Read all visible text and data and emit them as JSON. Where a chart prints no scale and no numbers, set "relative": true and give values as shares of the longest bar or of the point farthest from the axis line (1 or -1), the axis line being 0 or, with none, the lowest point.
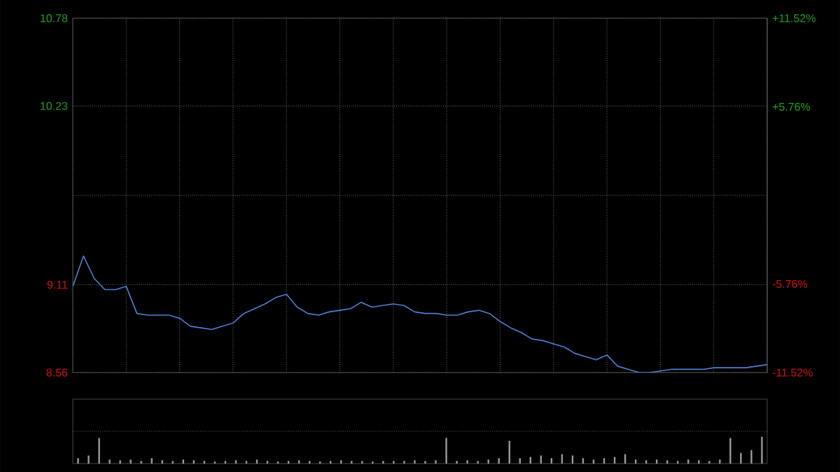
{
  "chart_data": [
    {
      "type": "line",
      "categories": [
        null,
        null,
        null,
        null,
        null,
        null,
        null,
        null,
        null,
        null,
        null,
        null,
        null,
        null,
        null,
        null,
        null,
        null,
        null,
        null,
        null,
        null,
        null,
        null,
        null,
        null,
        null,
        null,
        null,
        null,
        null,
        null,
        null,
        null,
        null,
        null,
        null,
        null,
        null,
        null,
        null,
        null,
        null,
        null,
        null,
        null,
        null,
        null,
        null,
        null,
        null,
        null,
        null,
        null,
        null,
        null,
        null,
        null,
        null,
        null,
        null,
        null,
        null,
        null,
        null,
        null
      ],
      "series": [
        {
          "color": "#4f7fd0",
          "values": [
            9.1,
            9.29,
            9.15,
            9.08,
            9.08,
            9.1,
            8.93,
            8.92,
            8.92,
            8.92,
            8.9,
            8.85,
            8.84,
            8.83,
            8.85,
            8.87,
            8.93,
            8.96,
            8.99,
            9.03,
            9.05,
            8.97,
            8.93,
            8.92,
            8.94,
            8.95,
            8.96,
            9.0,
            8.97,
            8.98,
            8.99,
            8.98,
            8.94,
            8.93,
            8.93,
            8.92,
            8.92,
            8.94,
            8.95,
            8.93,
            8.88,
            8.84,
            8.81,
            8.77,
            8.76,
            8.74,
            8.72,
            8.68,
            8.66,
            8.64,
            8.67,
            8.6,
            8.58,
            8.56,
            8.56,
            8.57,
            8.58,
            8.58,
            8.58,
            8.58,
            8.59,
            8.59,
            8.59,
            8.59,
            8.6,
            8.61
          ]
        }
      ],
      "ylim": [
        8.56,
        10.78
      ],
      "yticks": [
        8.56,
        9.11,
        {
          "value": 9.67,
          "label": null
        },
        10.23,
        10.78
      ],
      "y2lim": [
        -11.52,
        11.52
      ],
      "y2ticks": [
        {
          "value": -11.52,
          "label": "-11.52%"
        },
        {
          "value": -5.76,
          "label": "-5.76%"
        },
        {
          "value": 0,
          "label": null
        },
        {
          "value": 5.76,
          "label": "+5.76%"
        },
        {
          "value": 11.52,
          "label": "+11.52%"
        }
      ],
      "grid": true,
      "tick_labels": "y",
      "marker": "none",
      "line_style": "solid"
    },
    {
      "type": "bar",
      "relative": true,
      "color": "#9a9a9a",
      "tick_labels": false,
      "categories": [
        null,
        null,
        null,
        null,
        null,
        null,
        null,
        null,
        null,
        null,
        null,
        null,
        null,
        null,
        null,
        null,
        null,
        null,
        null,
        null,
        null,
        null,
        null,
        null,
        null,
        null,
        null,
        null,
        null,
        null,
        null,
        null,
        null,
        null,
        null,
        null,
        null,
        null,
        null,
        null,
        null,
        null,
        null,
        null,
        null,
        null,
        null,
        null,
        null,
        null,
        null,
        null,
        null,
        null,
        null,
        null,
        null,
        null,
        null,
        null,
        null,
        null,
        null,
        null,
        null,
        null
      ],
      "values": [
        0.2,
        0.3,
        0.95,
        0.15,
        0.12,
        0.15,
        0.1,
        0.2,
        0.12,
        0.1,
        0.15,
        0.12,
        0.1,
        0.08,
        0.1,
        0.12,
        0.1,
        0.15,
        0.1,
        0.08,
        0.1,
        0.12,
        0.1,
        0.08,
        0.1,
        0.12,
        0.1,
        0.1,
        0.08,
        0.1,
        0.1,
        0.1,
        0.12,
        0.1,
        0.12,
        0.95,
        0.1,
        0.12,
        0.1,
        0.15,
        0.2,
        0.85,
        0.2,
        0.25,
        0.3,
        0.2,
        0.35,
        0.3,
        0.2,
        0.15,
        0.2,
        0.25,
        0.35,
        0.15,
        0.12,
        0.15,
        0.12,
        0.1,
        0.15,
        0.12,
        0.1,
        0.15,
        0.95,
        0.4,
        0.5,
        1
      ]
    }
  ]
}
